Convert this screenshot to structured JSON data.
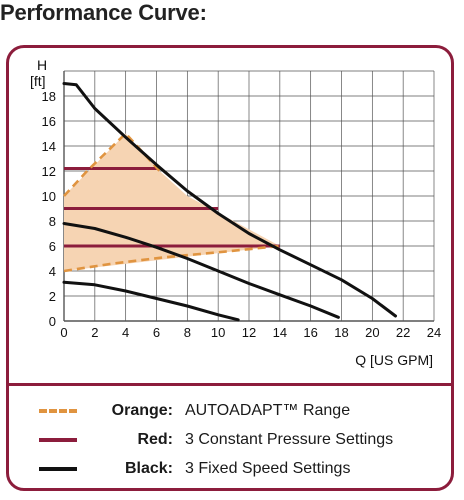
{
  "heading": "Performance Curve:",
  "colors": {
    "frame": "#8c1d3c",
    "orange": "#e09440",
    "orange_fill": "#f6d4b3",
    "red": "#8c1d3c",
    "black": "#111111",
    "grid": "#555555"
  },
  "chart_data": {
    "type": "line",
    "ylabel_top": "H",
    "ylabel_unit": "[ft]",
    "xlabel": "Q [US GPM]",
    "xlim": [
      0,
      24
    ],
    "ylim": [
      0,
      20
    ],
    "x_ticks": [
      0,
      2,
      4,
      6,
      8,
      10,
      12,
      14,
      16,
      18,
      20,
      22,
      24
    ],
    "y_ticks": [
      0,
      2,
      4,
      6,
      8,
      10,
      12,
      14,
      16,
      18
    ],
    "grid": true,
    "series": [
      {
        "name": "Orange",
        "kind": "range",
        "style": "dashed",
        "points": [
          [
            0,
            4
          ],
          [
            3.2,
            4.6
          ],
          [
            6.5,
            5.1
          ],
          [
            10,
            5.5
          ],
          [
            14,
            6
          ]
        ],
        "upper_points": [
          [
            0,
            10
          ],
          [
            1.5,
            12
          ],
          [
            2.5,
            13.2
          ],
          [
            4,
            15
          ],
          [
            6.2,
            12
          ]
        ],
        "outer_points": [
          [
            0,
            10
          ],
          [
            4,
            15
          ],
          [
            6.2,
            12
          ],
          [
            8,
            10
          ],
          [
            11,
            8
          ],
          [
            14,
            6
          ],
          [
            0,
            4
          ]
        ]
      },
      {
        "name": "Red",
        "kind": "constant",
        "lines": [
          {
            "y": 12.2,
            "x": [
              0,
              6.2
            ]
          },
          {
            "y": 9,
            "x": [
              0,
              10
            ]
          },
          {
            "y": 6,
            "x": [
              0,
              14
            ]
          }
        ]
      },
      {
        "name": "Black",
        "kind": "fixed",
        "curves": [
          [
            [
              0,
              19
            ],
            [
              0.8,
              18.9
            ],
            [
              2,
              17
            ],
            [
              4,
              14.7
            ],
            [
              6,
              12.5
            ],
            [
              8,
              10.4
            ],
            [
              10,
              8.6
            ],
            [
              12,
              7
            ],
            [
              14,
              5.7
            ],
            [
              16,
              4.5
            ],
            [
              18,
              3.3
            ],
            [
              20,
              1.8
            ],
            [
              21.5,
              0.4
            ]
          ],
          [
            [
              0,
              7.8
            ],
            [
              2,
              7.4
            ],
            [
              4,
              6.7
            ],
            [
              6,
              5.9
            ],
            [
              8,
              5
            ],
            [
              10,
              4
            ],
            [
              12,
              3
            ],
            [
              14,
              2.1
            ],
            [
              16,
              1.2
            ],
            [
              17.8,
              0.3
            ]
          ],
          [
            [
              0,
              3.1
            ],
            [
              2,
              2.9
            ],
            [
              4,
              2.4
            ],
            [
              6,
              1.8
            ],
            [
              8,
              1.2
            ],
            [
              10,
              0.5
            ],
            [
              11.3,
              0.1
            ]
          ]
        ]
      }
    ]
  },
  "legend": [
    {
      "key": "Orange:",
      "desc": "AUTOADAPT™ Range",
      "style": "orange"
    },
    {
      "key": "Red:",
      "desc": "3 Constant Pressure Settings",
      "style": "red"
    },
    {
      "key": "Black:",
      "desc": "3 Fixed Speed Settings",
      "style": "black"
    }
  ]
}
